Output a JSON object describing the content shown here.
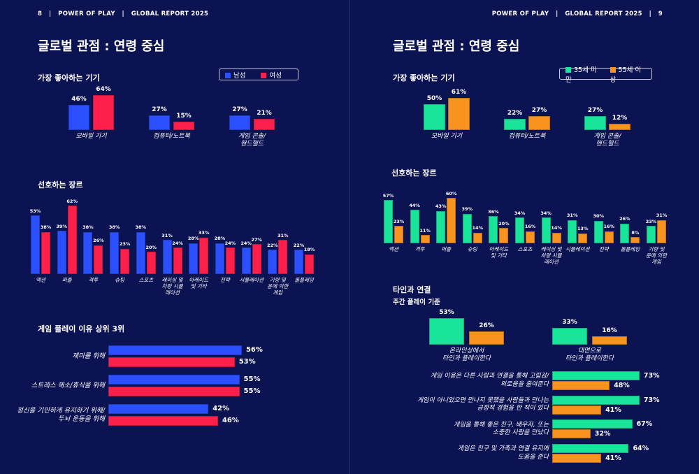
{
  "left_page": {
    "header": "8   |   POWER OF PLAY   |   GLOBAL REPORT 2025",
    "title": "글로벌 관점 : 연령 중심",
    "device_title": "가장 좋아하는 기기",
    "genre_title": "선호하는 장르",
    "reasons_title": "게임 플레이 이유 상위 3위",
    "legend": [
      {
        "label": "남성",
        "color": "#2a50ff"
      },
      {
        "label": "여성",
        "color": "#ff1f4b"
      }
    ]
  },
  "right_page": {
    "header": "POWER OF PLAY   |   GLOBAL REPORT 2025   |   9",
    "title": "글로벌 관점 : 연령 중심",
    "device_title": "가장 좋아하는 기기",
    "genre_title": "선호하는 장르",
    "connect_title": "타인과 연결",
    "connect_subtitle": "주간 플레이 기준",
    "legend": [
      {
        "label": "35세 미만",
        "color": "#19e59a"
      },
      {
        "label": "55세 이상",
        "color": "#f7931e"
      }
    ]
  },
  "chart_data": [
    {
      "id": "left-device",
      "type": "bar",
      "categories": [
        "모바일 기기",
        "컴퓨터/노트북",
        "게임 콘솔/\n핸드헬드"
      ],
      "series": [
        {
          "name": "남성",
          "values": [
            46,
            27,
            27
          ],
          "color": "#2a50ff"
        },
        {
          "name": "여성",
          "values": [
            64,
            15,
            21
          ],
          "color": "#ff1f4b"
        }
      ]
    },
    {
      "id": "left-genre",
      "type": "bar",
      "categories": [
        "액션",
        "퍼즐",
        "격투",
        "슈팅",
        "스포츠",
        "레이싱 및\n차량 시뮬\n레이션",
        "아케이드\n및 기타",
        "전략",
        "시뮬레이션",
        "기량 및\n운에 의한\n게임",
        "롤플레잉"
      ],
      "series": [
        {
          "name": "남성",
          "values": [
            53,
            39,
            38,
            38,
            38,
            31,
            28,
            28,
            24,
            22,
            22
          ],
          "color": "#2a50ff"
        },
        {
          "name": "여성",
          "values": [
            38,
            62,
            26,
            23,
            20,
            24,
            33,
            24,
            27,
            31,
            18
          ],
          "color": "#ff1f4b"
        }
      ]
    },
    {
      "id": "left-reasons",
      "type": "bar",
      "orientation": "horizontal",
      "categories": [
        "재미를 위해",
        "스트레스 해소/휴식을 위해",
        "정신을 기민하게 유지하기 위해/\n두뇌 운동을 위해"
      ],
      "series": [
        {
          "name": "남성",
          "values": [
            56,
            55,
            42
          ],
          "color": "#2a50ff"
        },
        {
          "name": "여성",
          "values": [
            53,
            55,
            46
          ],
          "color": "#ff1f4b"
        }
      ]
    },
    {
      "id": "right-device",
      "type": "bar",
      "categories": [
        "모바일 기기",
        "컴퓨터/노트북",
        "게임 콘솔/\n핸드헬드"
      ],
      "series": [
        {
          "name": "35세 미만",
          "values": [
            50,
            22,
            27
          ],
          "color": "#19e59a"
        },
        {
          "name": "55세 이상",
          "values": [
            61,
            27,
            12
          ],
          "color": "#f7931e"
        }
      ]
    },
    {
      "id": "right-genre",
      "type": "bar",
      "categories": [
        "액션",
        "격투",
        "퍼즐",
        "슈팅",
        "아케이드\n및 기타",
        "스포츠",
        "레이싱 및\n차량 시뮬\n레이션",
        "시뮬레이션",
        "전략",
        "롤플레잉",
        "기량 및\n운에 의한\n게임"
      ],
      "series": [
        {
          "name": "35세 미만",
          "values": [
            57,
            44,
            43,
            39,
            36,
            34,
            34,
            31,
            30,
            26,
            23
          ],
          "color": "#19e59a"
        },
        {
          "name": "55세 이상",
          "values": [
            23,
            11,
            60,
            14,
            20,
            16,
            14,
            13,
            16,
            8,
            31
          ],
          "color": "#f7931e"
        }
      ]
    },
    {
      "id": "right-connect",
      "type": "bar",
      "categories": [
        "온라인상에서\n타인과 플레이한다",
        "대면으로\n타인과 플레이한다"
      ],
      "series": [
        {
          "name": "35세 미만",
          "values": [
            53,
            33
          ],
          "color": "#19e59a"
        },
        {
          "name": "55세 이상",
          "values": [
            26,
            16
          ],
          "color": "#f7931e"
        }
      ]
    },
    {
      "id": "right-attitudes",
      "type": "bar",
      "orientation": "horizontal",
      "categories": [
        "게임 이용은 다른 사람과 연결을 통해 고립감/\n외로움을 줄여준다",
        "게임이 아니었으면 만나지 못했을 사람들과 만나는\n긍정적 경험을 한 적이 있다",
        "게임을 통해 좋은 친구, 배우자, 또는\n소중한 사람을 만났다",
        "게임은 친구 및 가족과 연결 유지에\n도움을 준다"
      ],
      "series": [
        {
          "name": "35세 미만",
          "values": [
            73,
            73,
            67,
            64
          ],
          "color": "#19e59a"
        },
        {
          "name": "55세 이상",
          "values": [
            48,
            41,
            32,
            41
          ],
          "color": "#f7931e"
        }
      ]
    }
  ]
}
